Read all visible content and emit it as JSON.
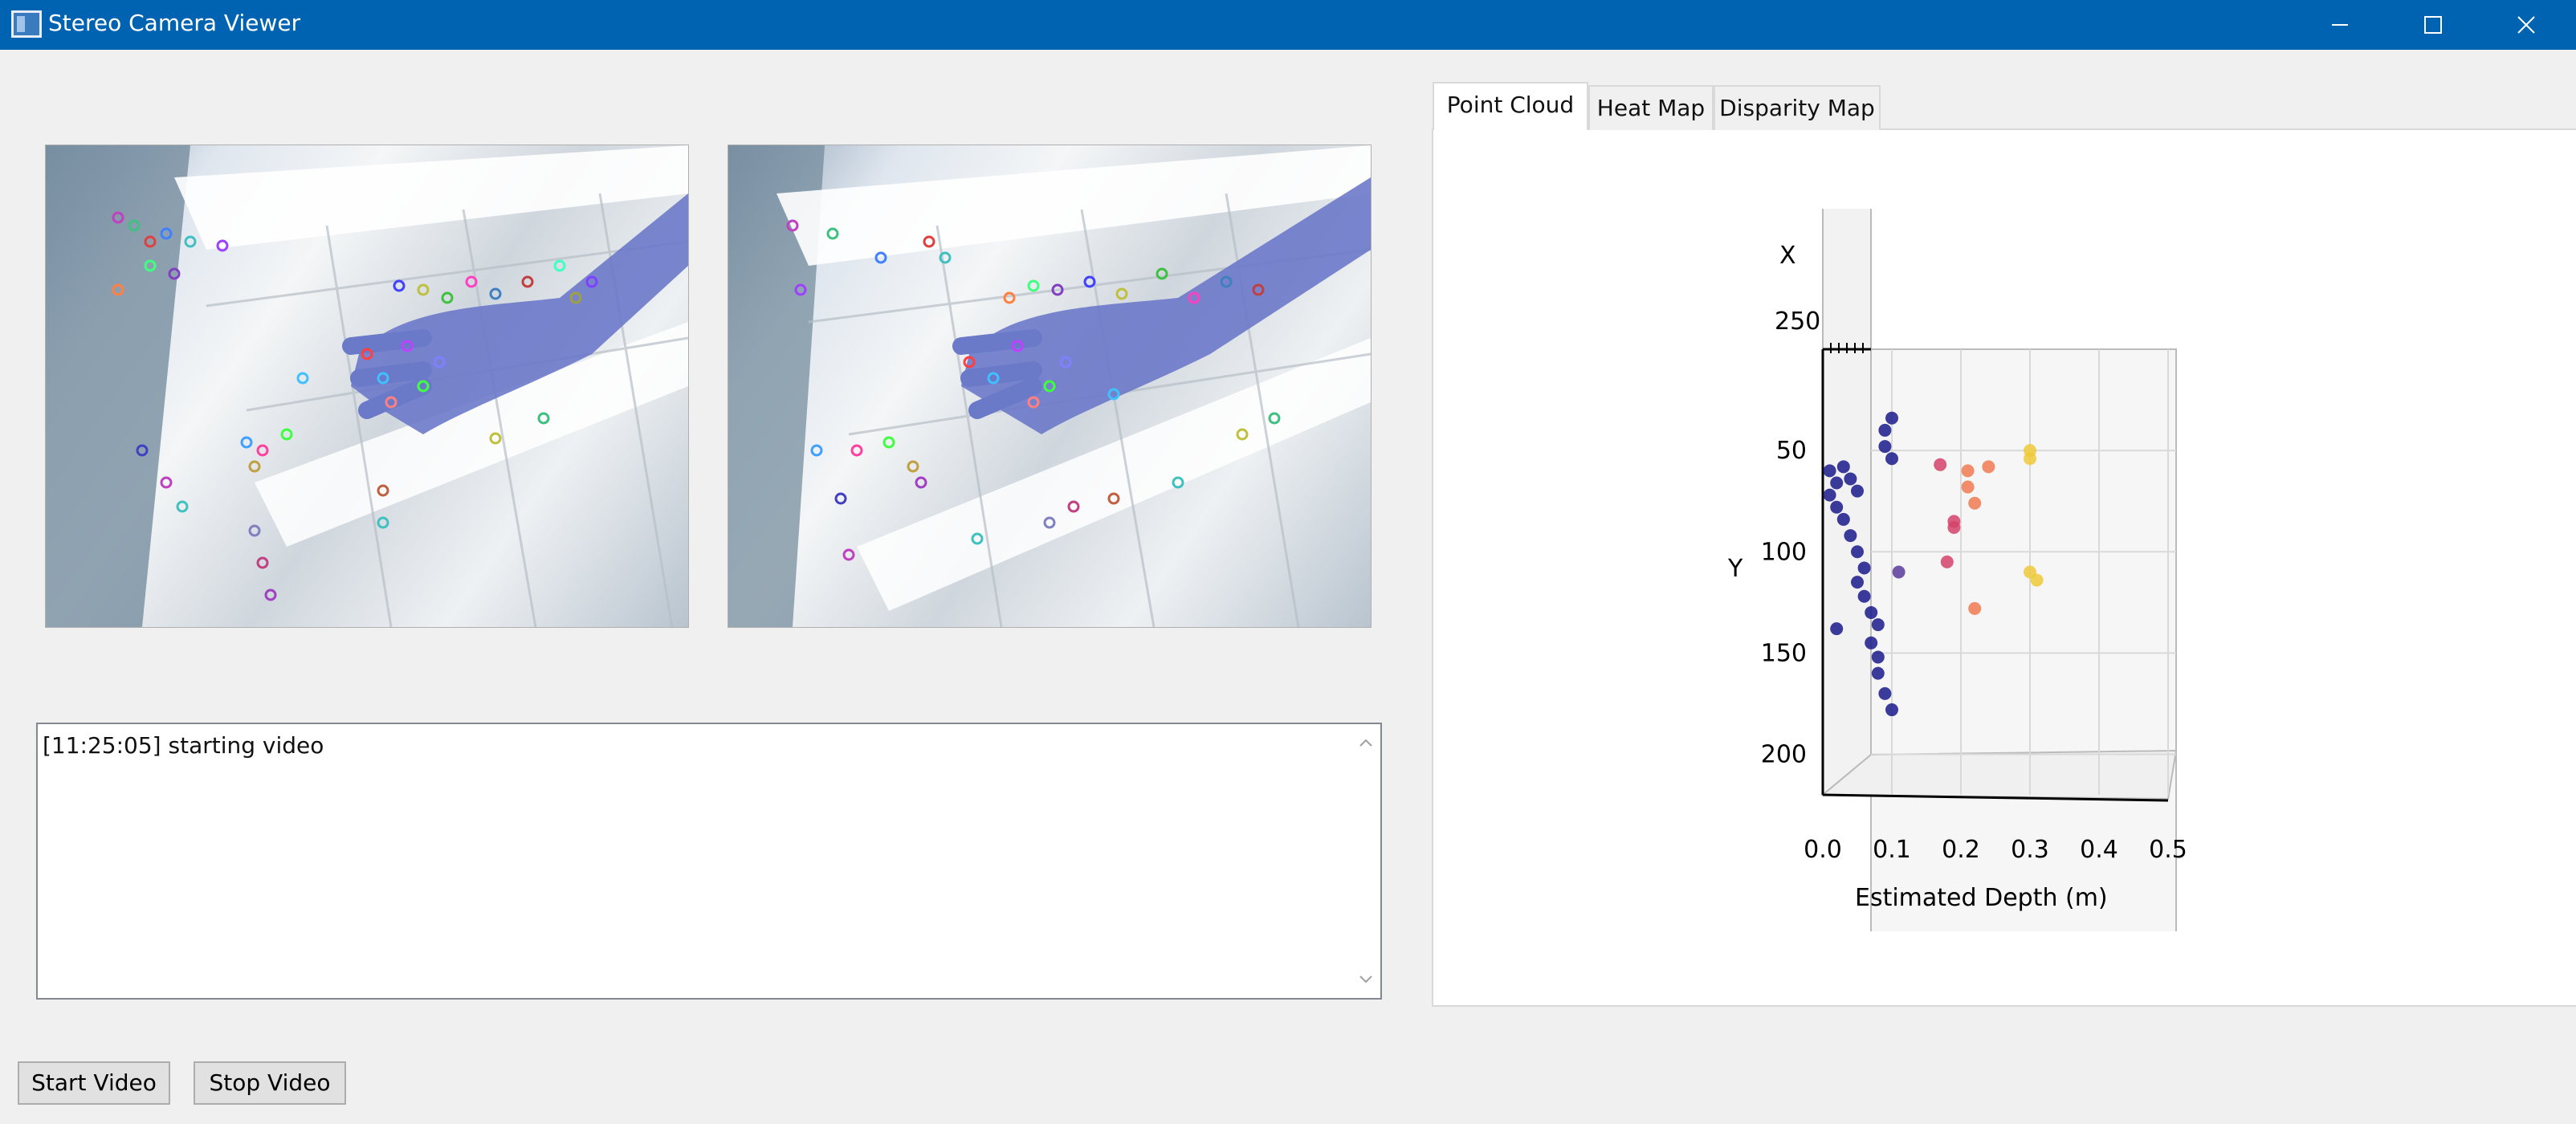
{
  "window": {
    "title": "Stereo Camera Viewer"
  },
  "log": {
    "lines": [
      "[11:25:05] starting video"
    ]
  },
  "buttons": {
    "start": "Start Video",
    "stop": "Stop Video"
  },
  "tabs": [
    {
      "label": "Point Cloud",
      "active": true
    },
    {
      "label": "Heat Map",
      "active": false
    },
    {
      "label": "Disparity Map",
      "active": false
    }
  ],
  "icons": [
    "app-icon",
    "minimize-icon",
    "maximize-icon",
    "close-icon",
    "scroll-up-icon",
    "scroll-down-icon"
  ],
  "colors": {
    "titlebar": "#0063b1",
    "series_near": "#1a1a8c",
    "series_mid": "#d4426a",
    "series_far": "#f0c93a"
  },
  "chart_data": {
    "type": "scatter",
    "xlabel": "Estimated Depth (m)",
    "ylabel": "Y",
    "zlabel": "X",
    "z_tick_label": "250",
    "x_ticks": [
      "0.0",
      "0.1",
      "0.2",
      "0.3",
      "0.4",
      "0.5"
    ],
    "y_ticks": [
      "50",
      "100",
      "150",
      "200"
    ],
    "xlim": [
      0.0,
      0.5
    ],
    "ylim": [
      0,
      220
    ],
    "points": [
      {
        "depth": 0.01,
        "y": 60,
        "c": 0.0
      },
      {
        "depth": 0.02,
        "y": 66,
        "c": 0.0
      },
      {
        "depth": 0.01,
        "y": 72,
        "c": 0.0
      },
      {
        "depth": 0.03,
        "y": 58,
        "c": 0.0
      },
      {
        "depth": 0.02,
        "y": 78,
        "c": 0.0
      },
      {
        "depth": 0.04,
        "y": 64,
        "c": 0.0
      },
      {
        "depth": 0.03,
        "y": 84,
        "c": 0.0
      },
      {
        "depth": 0.05,
        "y": 70,
        "c": 0.0
      },
      {
        "depth": 0.04,
        "y": 92,
        "c": 0.0
      },
      {
        "depth": 0.05,
        "y": 100,
        "c": 0.0
      },
      {
        "depth": 0.06,
        "y": 108,
        "c": 0.0
      },
      {
        "depth": 0.05,
        "y": 115,
        "c": 0.0
      },
      {
        "depth": 0.06,
        "y": 122,
        "c": 0.0
      },
      {
        "depth": 0.07,
        "y": 130,
        "c": 0.0
      },
      {
        "depth": 0.08,
        "y": 136,
        "c": 0.0
      },
      {
        "depth": 0.07,
        "y": 145,
        "c": 0.0
      },
      {
        "depth": 0.08,
        "y": 152,
        "c": 0.0
      },
      {
        "depth": 0.08,
        "y": 160,
        "c": 0.0
      },
      {
        "depth": 0.09,
        "y": 40,
        "c": 0.0
      },
      {
        "depth": 0.09,
        "y": 48,
        "c": 0.0
      },
      {
        "depth": 0.1,
        "y": 34,
        "c": 0.0
      },
      {
        "depth": 0.1,
        "y": 54,
        "c": 0.0
      },
      {
        "depth": 0.09,
        "y": 170,
        "c": 0.0
      },
      {
        "depth": 0.1,
        "y": 178,
        "c": 0.0
      },
      {
        "depth": 0.02,
        "y": 138,
        "c": 0.0
      },
      {
        "depth": 0.11,
        "y": 110,
        "c": 0.1
      },
      {
        "depth": 0.17,
        "y": 57,
        "c": 0.55
      },
      {
        "depth": 0.19,
        "y": 85,
        "c": 0.55
      },
      {
        "depth": 0.19,
        "y": 88,
        "c": 0.55
      },
      {
        "depth": 0.18,
        "y": 105,
        "c": 0.55
      },
      {
        "depth": 0.21,
        "y": 60,
        "c": 0.75
      },
      {
        "depth": 0.21,
        "y": 68,
        "c": 0.75
      },
      {
        "depth": 0.22,
        "y": 76,
        "c": 0.75
      },
      {
        "depth": 0.22,
        "y": 128,
        "c": 0.65
      },
      {
        "depth": 0.24,
        "y": 58,
        "c": 0.8
      },
      {
        "depth": 0.3,
        "y": 50,
        "c": 1.0
      },
      {
        "depth": 0.3,
        "y": 54,
        "c": 1.0
      },
      {
        "depth": 0.3,
        "y": 110,
        "c": 0.9
      },
      {
        "depth": 0.31,
        "y": 114,
        "c": 0.9
      }
    ]
  }
}
